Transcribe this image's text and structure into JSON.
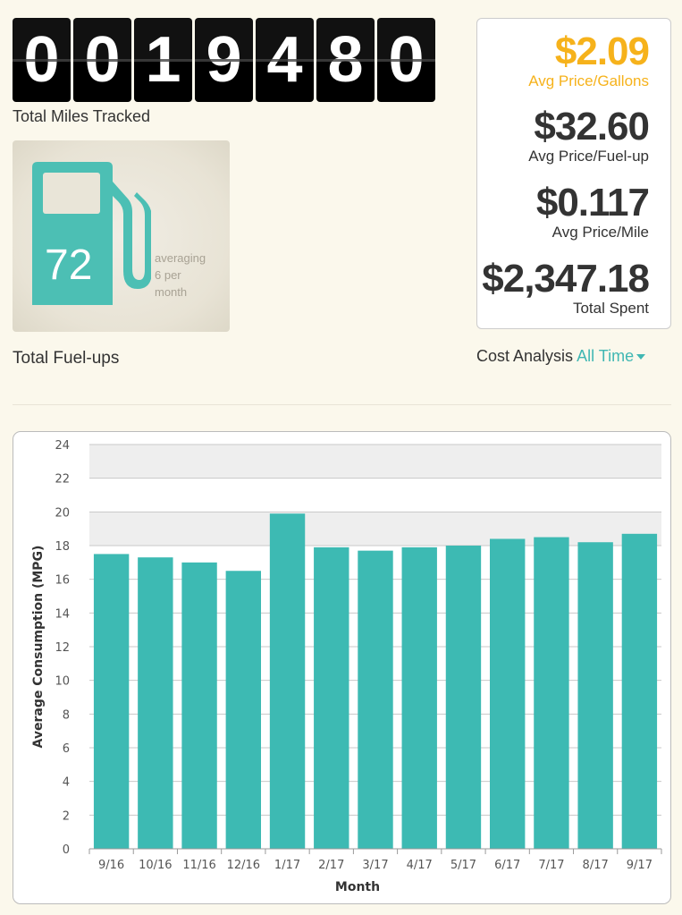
{
  "odometer": {
    "digits": [
      "0",
      "0",
      "1",
      "9",
      "4",
      "8",
      "0"
    ],
    "label": "Total Miles Tracked"
  },
  "fuel": {
    "count": "72",
    "averaging_lines": [
      "averaging",
      "6 per",
      "month"
    ],
    "label": "Total Fuel-ups",
    "icon": "gas-pump-icon",
    "icon_color": "#4cbfb4"
  },
  "cost": {
    "items": [
      {
        "value": "$2.09",
        "label": "Avg Price/Gallons"
      },
      {
        "value": "$32.60",
        "label": "Avg Price/Fuel-up"
      },
      {
        "value": "$0.117",
        "label": "Avg Price/Mile"
      },
      {
        "value": "$2,347.18",
        "label": "Total Spent"
      }
    ],
    "analysis_label": "Cost Analysis",
    "range_label": "All Time",
    "accent_color": "#f6b21b"
  },
  "chart_data": {
    "type": "bar",
    "categories": [
      "9/16",
      "10/16",
      "11/16",
      "12/16",
      "1/17",
      "2/17",
      "3/17",
      "4/17",
      "5/17",
      "6/17",
      "7/17",
      "8/17",
      "9/17"
    ],
    "values": [
      17.5,
      17.3,
      17.0,
      16.5,
      19.9,
      17.9,
      17.7,
      17.9,
      18.0,
      18.4,
      18.5,
      18.2,
      18.7
    ],
    "xlabel": "Month",
    "ylabel": "Average Consumption (MPG)",
    "ylim": [
      0,
      24
    ],
    "yticks": [
      0,
      2,
      4,
      6,
      8,
      10,
      12,
      14,
      16,
      18,
      20,
      22,
      24
    ],
    "bar_color": "#3dbab3",
    "band_color": "#eeeeee",
    "bands": [
      [
        18,
        20
      ],
      [
        22,
        24
      ]
    ],
    "grid": true
  }
}
